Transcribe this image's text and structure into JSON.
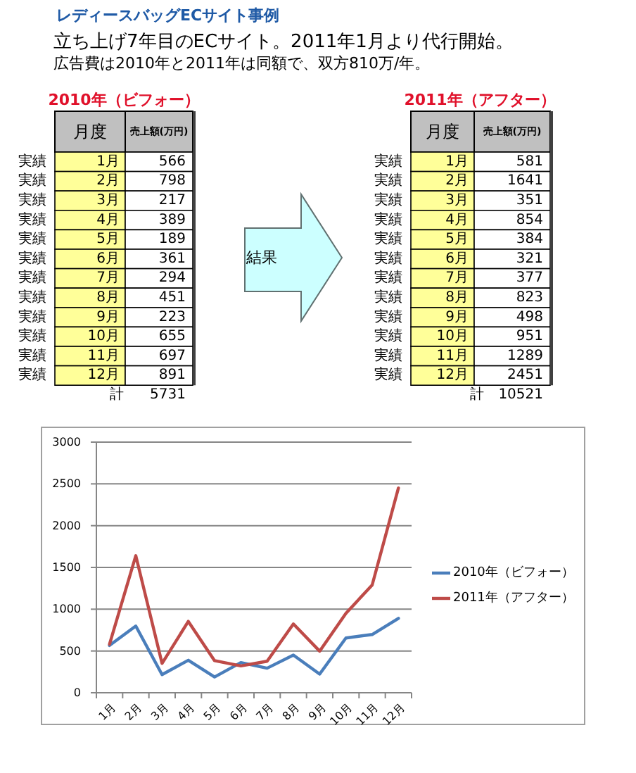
{
  "chart_data": {
    "type": "line",
    "title": "レディースバッグECサイト事例",
    "subtitle": "立ち上げ7年目のECサイト。2011年1月より代行開始。",
    "categories": [
      "1月",
      "2月",
      "3月",
      "4月",
      "5月",
      "6月",
      "7月",
      "8月",
      "9月",
      "10月",
      "11月",
      "12月"
    ],
    "series": [
      {
        "name": "2010年（ビフォー）",
        "color": "#4a7ebb",
        "values": [
          566,
          798,
          217,
          389,
          189,
          361,
          294,
          451,
          223,
          655,
          697,
          891
        ]
      },
      {
        "name": "2011年（アフター）",
        "color": "#be4b48",
        "values": [
          581,
          1641,
          351,
          854,
          384,
          321,
          377,
          823,
          498,
          951,
          1289,
          2451
        ]
      }
    ],
    "ylim": [
      0,
      3000
    ],
    "yticks": [
      0,
      500,
      1000,
      1500,
      2000,
      2500,
      3000
    ],
    "grid": "y",
    "legend": "right",
    "annotations": [
      "広告費は2010年と2011年は同額で、双方810万/年。",
      "月度",
      "売上額(万円)",
      "実績",
      "566",
      "実績",
      "798",
      "実績",
      "217",
      "実績",
      "389",
      "実績",
      "189",
      "実績",
      "361",
      "実績",
      "294",
      "実績",
      "451",
      "実績",
      "223",
      "実績",
      "655",
      "実績",
      "697",
      "実績",
      "891",
      "計",
      "5731",
      "月度",
      "売上額(万円)",
      "実績",
      "581",
      "実績",
      "1641",
      "実績",
      "351",
      "実績",
      "854",
      "実績",
      "384",
      "実績",
      "321",
      "実績",
      "377",
      "実績",
      "823",
      "実績",
      "498",
      "実績",
      "951",
      "実績",
      "1289",
      "実績",
      "2451",
      "計",
      "10521",
      "結果"
    ]
  }
}
